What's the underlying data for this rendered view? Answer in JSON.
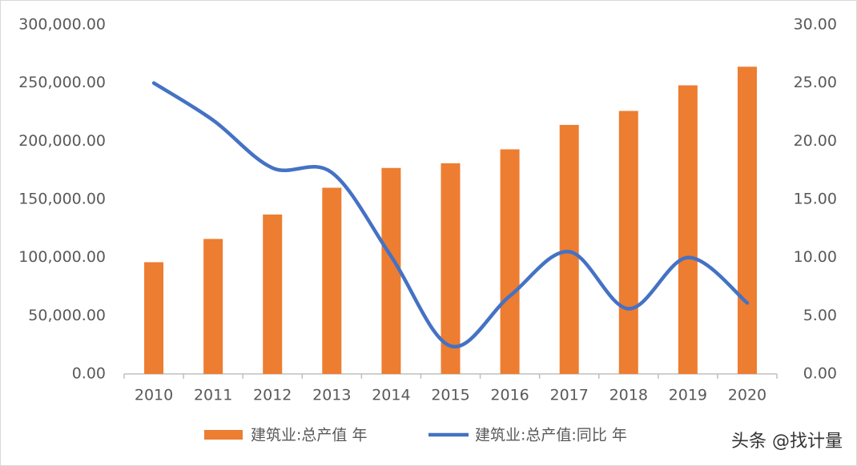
{
  "chart_data": {
    "type": "bar-line",
    "categories": [
      "2010",
      "2011",
      "2012",
      "2013",
      "2014",
      "2015",
      "2016",
      "2017",
      "2018",
      "2019",
      "2020"
    ],
    "series": [
      {
        "name": "建筑业:总产值 年",
        "color": "#ed7d31",
        "type": "bar",
        "axis": "y",
        "values": [
          96000,
          116000,
          137000,
          160000,
          177000,
          181000,
          193000,
          214000,
          226000,
          248000,
          264000
        ]
      },
      {
        "name": "建筑业:总产值:同比 年",
        "color": "#4472c4",
        "type": "line",
        "axis": "y2",
        "values": [
          25.0,
          21.8,
          17.7,
          17.3,
          10.1,
          2.4,
          6.7,
          10.5,
          5.6,
          10.0,
          6.1
        ]
      }
    ],
    "ylim": [
      0,
      300000
    ],
    "yticks": [
      {
        "value": 0,
        "label": "0.00"
      },
      {
        "value": 50000,
        "label": "50,000.00"
      },
      {
        "value": 100000,
        "label": "100,000.00"
      },
      {
        "value": 150000,
        "label": "150,000.00"
      },
      {
        "value": 200000,
        "label": "200,000.00"
      },
      {
        "value": 250000,
        "label": "250,000.00"
      },
      {
        "value": 300000,
        "label": "300,000.00"
      }
    ],
    "y2lim": [
      0,
      30
    ],
    "y2ticks": [
      {
        "value": 0,
        "label": "0.00"
      },
      {
        "value": 5,
        "label": "5.00"
      },
      {
        "value": 10,
        "label": "10.00"
      },
      {
        "value": 15,
        "label": "15.00"
      },
      {
        "value": 20,
        "label": "20.00"
      },
      {
        "value": 25,
        "label": "25.00"
      },
      {
        "value": 30,
        "label": "30.00"
      }
    ],
    "grid": false,
    "legend": "bottom",
    "watermark": "头条 @找计量"
  }
}
